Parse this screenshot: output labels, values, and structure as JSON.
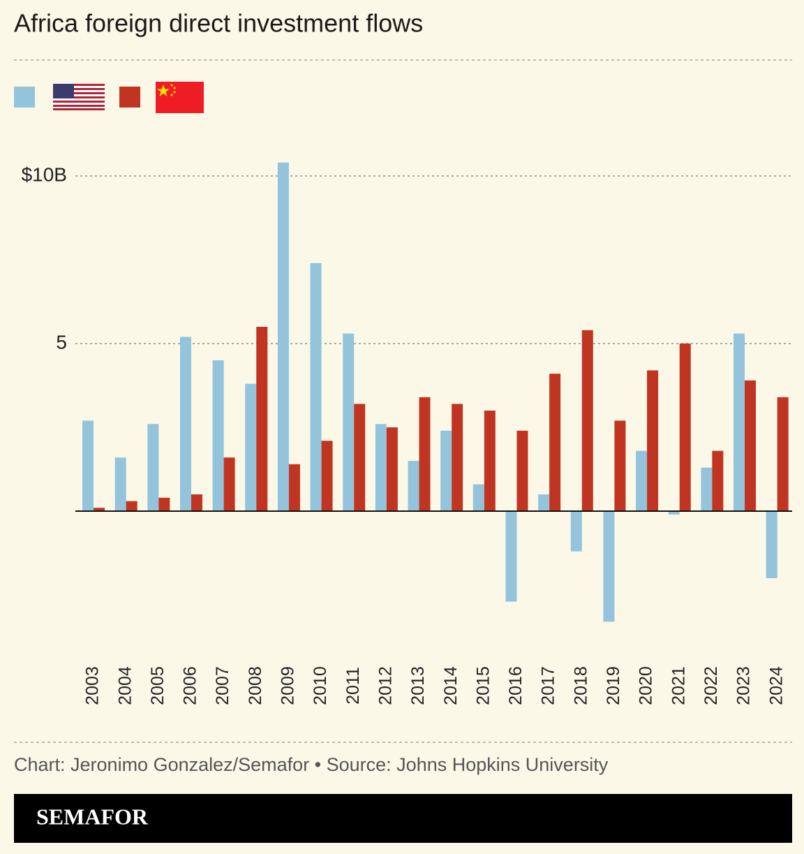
{
  "chart_data": {
    "type": "bar",
    "title": "Africa foreign direct investment flows",
    "categories": [
      "2003",
      "2004",
      "2005",
      "2006",
      "2007",
      "2008",
      "2009",
      "2010",
      "2011",
      "2012",
      "2013",
      "2014",
      "2015",
      "2016",
      "2017",
      "2018",
      "2019",
      "2020",
      "2021",
      "2022",
      "2023",
      "2024"
    ],
    "series": [
      {
        "color": "#93c4dc",
        "values": [
          2.7,
          1.6,
          2.6,
          5.2,
          4.5,
          3.8,
          10.4,
          7.4,
          5.3,
          2.6,
          1.5,
          2.4,
          0.8,
          -2.7,
          0.5,
          -1.2,
          -3.3,
          1.8,
          -0.1,
          1.3,
          5.3,
          -2.0
        ]
      },
      {
        "color": "#c03522",
        "values": [
          0.1,
          0.3,
          0.4,
          0.5,
          1.6,
          5.5,
          1.4,
          2.1,
          3.2,
          2.5,
          3.4,
          3.2,
          3.0,
          2.4,
          4.1,
          5.4,
          2.7,
          4.2,
          5.0,
          1.8,
          3.9,
          3.4
        ]
      }
    ],
    "ylim": [
      -3.5,
      10.5
    ],
    "yticks": [
      5,
      {
        "value": 10,
        "label": "$10B"
      }
    ],
    "grid": true
  },
  "footer": {
    "credit": "Chart: Jeronimo Gonzalez/Semafor • Source: Johns Hopkins University",
    "brand": "SEMAFOR"
  }
}
